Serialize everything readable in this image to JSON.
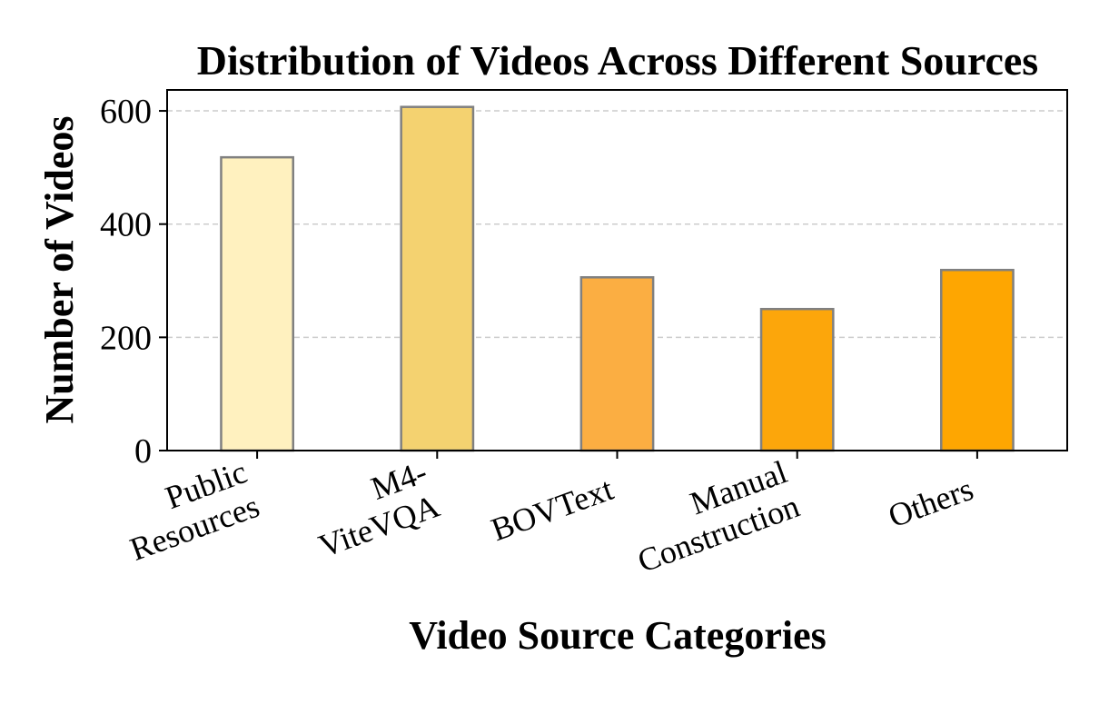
{
  "chart_data": {
    "type": "bar",
    "title": "Distribution of Videos Across Different Sources",
    "xlabel": "Video Source Categories",
    "ylabel": "Number of Videos",
    "categories": [
      [
        "Public",
        "Resources"
      ],
      [
        "M4-",
        "ViteVQA"
      ],
      [
        "BOVText"
      ],
      [
        "Manual",
        "Construction"
      ],
      [
        "Others"
      ]
    ],
    "values": [
      518,
      607,
      306,
      250,
      319
    ],
    "colors": [
      "#fff1bf",
      "#f4d270",
      "#fbae42",
      "#fca60b",
      "#fea601"
    ],
    "bar_edge_color": "#808080",
    "ylim": [
      0,
      637
    ],
    "yticks": [
      0,
      200,
      400,
      600
    ],
    "grid": {
      "y": true,
      "x": false,
      "style": "dashed",
      "color": "#cccccc"
    },
    "legend": "none"
  }
}
